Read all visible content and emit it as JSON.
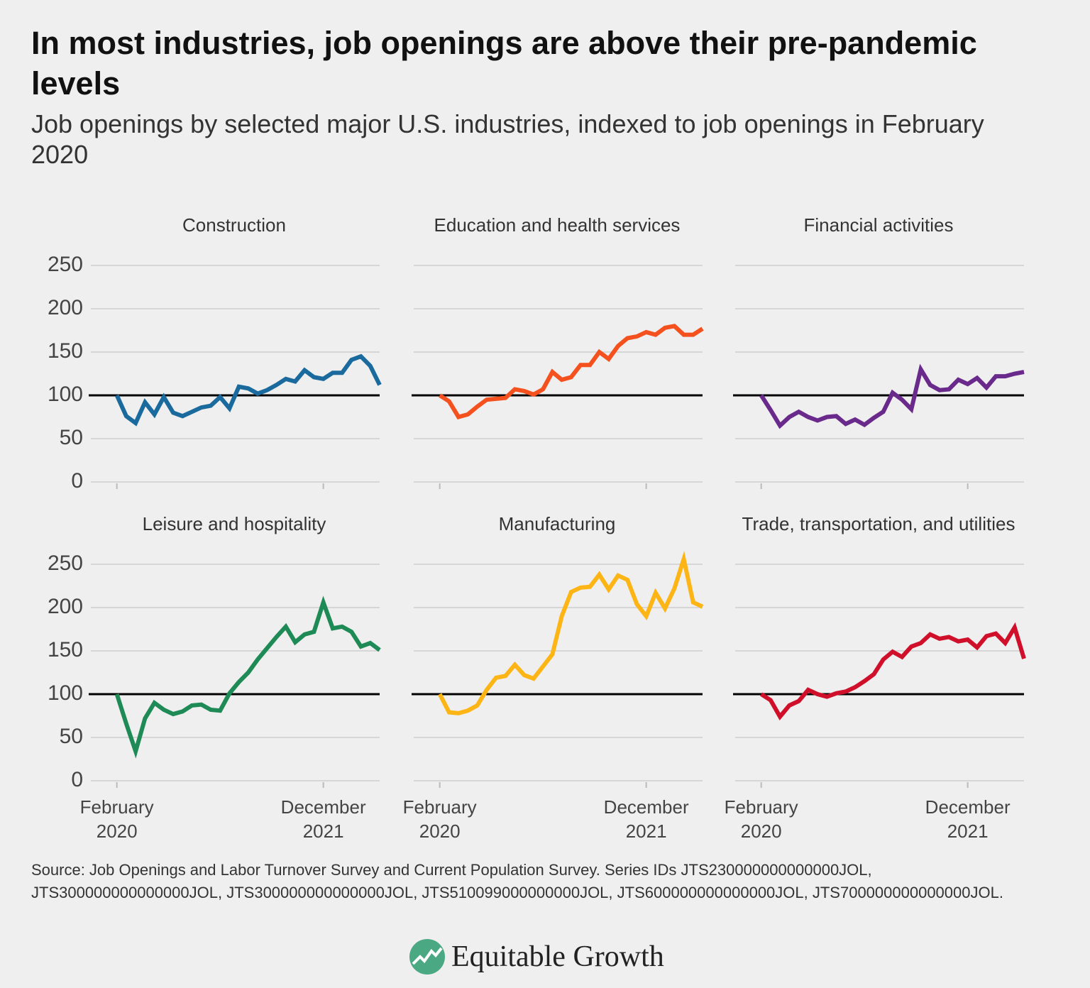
{
  "title": "In most industries, job openings are above their pre-pandemic levels",
  "subtitle": "Job openings by selected major U.S. industries, indexed to job openings in February 2020",
  "source": "Source: Job Openings and Labor Turnover Survey and Current Population Survey. Series IDs JTS230000000000000JOL, JTS300000000000000JOL, JTS300000000000000JOL, JTS510099000000000JOL, JTS600000000000000JOL, JTS700000000000000JOL.",
  "logo": "Equitable Growth",
  "chart_data": [
    {
      "type": "line",
      "title": "Construction",
      "color": "#1b6a9e",
      "x": [
        "2020-02",
        "2020-03",
        "2020-04",
        "2020-05",
        "2020-06",
        "2020-07",
        "2020-08",
        "2020-09",
        "2020-10",
        "2020-11",
        "2020-12",
        "2021-01",
        "2021-02",
        "2021-03",
        "2021-04",
        "2021-05",
        "2021-06",
        "2021-07",
        "2021-08",
        "2021-09",
        "2021-10",
        "2021-11",
        "2021-12",
        "2022-01",
        "2022-02",
        "2022-03",
        "2022-04",
        "2022-05",
        "2022-06"
      ],
      "values": [
        100,
        76,
        68,
        92,
        78,
        98,
        80,
        76,
        81,
        86,
        88,
        98,
        85,
        110,
        108,
        102,
        106,
        112,
        119,
        116,
        129,
        121,
        119,
        126,
        126,
        141,
        145,
        134,
        112
      ],
      "xlim": [
        "2019-11",
        "2022-06"
      ],
      "xticks": [
        {
          "value": "2020-02",
          "label": "February 2020"
        },
        {
          "value": "2021-12",
          "label": "December 2021"
        }
      ],
      "ylim": [
        0,
        250
      ],
      "yticks": [
        0,
        50,
        100,
        150,
        200,
        250
      ],
      "baseline": 100,
      "grid": true
    },
    {
      "type": "line",
      "title": "Education and health services",
      "color": "#f4511e",
      "x": [
        "2020-02",
        "2020-03",
        "2020-04",
        "2020-05",
        "2020-06",
        "2020-07",
        "2020-08",
        "2020-09",
        "2020-10",
        "2020-11",
        "2020-12",
        "2021-01",
        "2021-02",
        "2021-03",
        "2021-04",
        "2021-05",
        "2021-06",
        "2021-07",
        "2021-08",
        "2021-09",
        "2021-10",
        "2021-11",
        "2021-12",
        "2022-01",
        "2022-02",
        "2022-03",
        "2022-04",
        "2022-05",
        "2022-06"
      ],
      "values": [
        100,
        93,
        75,
        78,
        87,
        95,
        96,
        97,
        107,
        105,
        101,
        107,
        127,
        118,
        121,
        135,
        135,
        150,
        142,
        157,
        166,
        168,
        173,
        170,
        178,
        180,
        170,
        170,
        177
      ],
      "xlim": [
        "2019-11",
        "2022-06"
      ],
      "xticks": [
        {
          "value": "2020-02",
          "label": "February 2020"
        },
        {
          "value": "2021-12",
          "label": "December 2021"
        }
      ],
      "ylim": [
        0,
        250
      ],
      "yticks": [
        0,
        50,
        100,
        150,
        200,
        250
      ],
      "baseline": 100,
      "grid": true
    },
    {
      "type": "line",
      "title": "Financial activities",
      "color": "#6a2a8c",
      "x": [
        "2020-02",
        "2020-03",
        "2020-04",
        "2020-05",
        "2020-06",
        "2020-07",
        "2020-08",
        "2020-09",
        "2020-10",
        "2020-11",
        "2020-12",
        "2021-01",
        "2021-02",
        "2021-03",
        "2021-04",
        "2021-05",
        "2021-06",
        "2021-07",
        "2021-08",
        "2021-09",
        "2021-10",
        "2021-11",
        "2021-12",
        "2022-01",
        "2022-02",
        "2022-03",
        "2022-04",
        "2022-05",
        "2022-06"
      ],
      "values": [
        100,
        83,
        65,
        75,
        81,
        75,
        71,
        75,
        76,
        67,
        72,
        66,
        74,
        81,
        103,
        95,
        84,
        130,
        112,
        106,
        107,
        118,
        113,
        120,
        109,
        122,
        122,
        125,
        127
      ],
      "xlim": [
        "2019-11",
        "2022-06"
      ],
      "xticks": [
        {
          "value": "2020-02",
          "label": "February 2020"
        },
        {
          "value": "2021-12",
          "label": "December 2021"
        }
      ],
      "ylim": [
        0,
        250
      ],
      "yticks": [
        0,
        50,
        100,
        150,
        200,
        250
      ],
      "baseline": 100,
      "grid": true
    },
    {
      "type": "line",
      "title": "Leisure and hospitality",
      "color": "#1e8a55",
      "x": [
        "2020-02",
        "2020-03",
        "2020-04",
        "2020-05",
        "2020-06",
        "2020-07",
        "2020-08",
        "2020-09",
        "2020-10",
        "2020-11",
        "2020-12",
        "2021-01",
        "2021-02",
        "2021-03",
        "2021-04",
        "2021-05",
        "2021-06",
        "2021-07",
        "2021-08",
        "2021-09",
        "2021-10",
        "2021-11",
        "2021-12",
        "2022-01",
        "2022-02",
        "2022-03",
        "2022-04",
        "2022-05",
        "2022-06"
      ],
      "values": [
        100,
        66,
        34,
        72,
        90,
        82,
        77,
        80,
        87,
        88,
        82,
        81,
        101,
        114,
        125,
        140,
        153,
        166,
        178,
        160,
        169,
        172,
        206,
        176,
        178,
        172,
        155,
        159,
        151
      ],
      "xlim": [
        "2019-11",
        "2022-06"
      ],
      "xticks": [
        {
          "value": "2020-02",
          "label": "February 2020"
        },
        {
          "value": "2021-12",
          "label": "December 2021"
        }
      ],
      "ylim": [
        0,
        250
      ],
      "yticks": [
        0,
        50,
        100,
        150,
        200,
        250
      ],
      "baseline": 100,
      "grid": true
    },
    {
      "type": "line",
      "title": "Manufacturing",
      "color": "#fdb515",
      "x": [
        "2020-02",
        "2020-03",
        "2020-04",
        "2020-05",
        "2020-06",
        "2020-07",
        "2020-08",
        "2020-09",
        "2020-10",
        "2020-11",
        "2020-12",
        "2021-01",
        "2021-02",
        "2021-03",
        "2021-04",
        "2021-05",
        "2021-06",
        "2021-07",
        "2021-08",
        "2021-09",
        "2021-10",
        "2021-11",
        "2021-12",
        "2022-01",
        "2022-02",
        "2022-03",
        "2022-04",
        "2022-05",
        "2022-06"
      ],
      "values": [
        100,
        79,
        78,
        81,
        87,
        105,
        119,
        121,
        134,
        122,
        118,
        132,
        146,
        190,
        218,
        223,
        224,
        238,
        221,
        237,
        232,
        204,
        190,
        217,
        199,
        222,
        256,
        206,
        201
      ],
      "xlim": [
        "2019-11",
        "2022-06"
      ],
      "xticks": [
        {
          "value": "2020-02",
          "label": "February 2020"
        },
        {
          "value": "2021-12",
          "label": "December 2021"
        }
      ],
      "ylim": [
        0,
        250
      ],
      "yticks": [
        0,
        50,
        100,
        150,
        200,
        250
      ],
      "baseline": 100,
      "grid": true
    },
    {
      "type": "line",
      "title": "Trade, transportation, and utilities",
      "color": "#d0102b",
      "x": [
        "2020-02",
        "2020-03",
        "2020-04",
        "2020-05",
        "2020-06",
        "2020-07",
        "2020-08",
        "2020-09",
        "2020-10",
        "2020-11",
        "2020-12",
        "2021-01",
        "2021-02",
        "2021-03",
        "2021-04",
        "2021-05",
        "2021-06",
        "2021-07",
        "2021-08",
        "2021-09",
        "2021-10",
        "2021-11",
        "2021-12",
        "2022-01",
        "2022-02",
        "2022-03",
        "2022-04",
        "2022-05",
        "2022-06"
      ],
      "values": [
        100,
        93,
        74,
        87,
        92,
        105,
        100,
        97,
        101,
        103,
        108,
        115,
        123,
        140,
        149,
        143,
        155,
        159,
        169,
        164,
        166,
        161,
        163,
        154,
        167,
        170,
        159,
        177,
        141
      ],
      "xlim": [
        "2019-11",
        "2022-06"
      ],
      "xticks": [
        {
          "value": "2020-02",
          "label": "February 2020"
        },
        {
          "value": "2021-12",
          "label": "December 2021"
        }
      ],
      "ylim": [
        0,
        250
      ],
      "yticks": [
        0,
        50,
        100,
        150,
        200,
        250
      ],
      "baseline": 100,
      "grid": true
    }
  ]
}
